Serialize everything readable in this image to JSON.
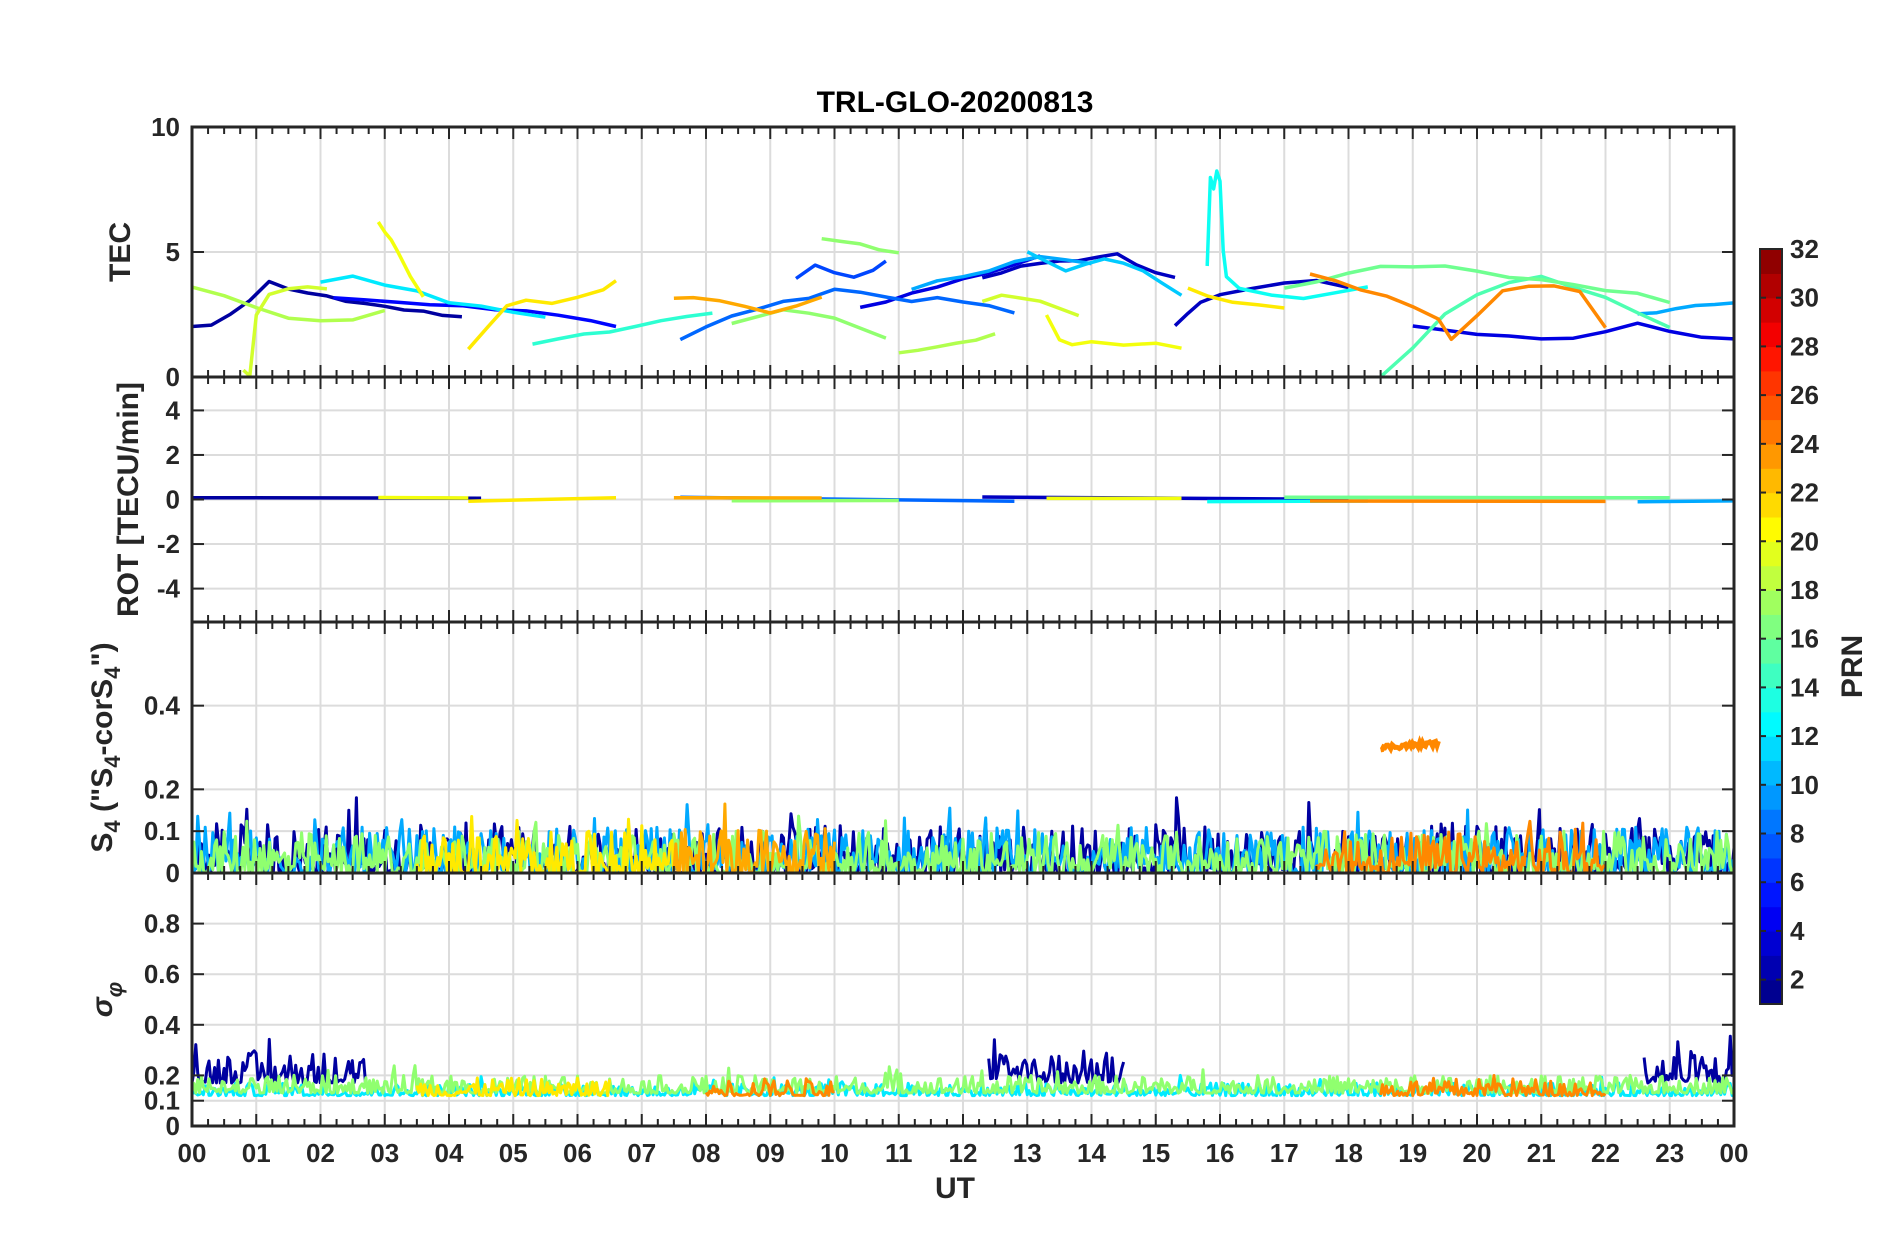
{
  "chart_data": {
    "type": "line",
    "title": "TRL-GLO-20200813",
    "xlabel": "UT",
    "x_ticks": [
      "00",
      "01",
      "02",
      "03",
      "04",
      "05",
      "06",
      "07",
      "08",
      "09",
      "10",
      "11",
      "12",
      "13",
      "14",
      "15",
      "16",
      "17",
      "18",
      "19",
      "20",
      "21",
      "22",
      "23",
      "00"
    ],
    "x_range": [
      0,
      24
    ],
    "panels": [
      {
        "name": "tec",
        "ylabel": "TEC",
        "ylim": [
          0,
          10
        ],
        "y_ticks": [
          0,
          5,
          10
        ],
        "tick_labels": [
          "0",
          "5",
          "10"
        ],
        "series": [
          {
            "prn": 2,
            "x": [
              0,
              0.3,
              0.6,
              0.9,
              1.2,
              1.5,
              1.8,
              2.1,
              2.4,
              2.7,
              3.0,
              3.3,
              3.6,
              3.9,
              4.2
            ],
            "y": [
              2.0,
              2.1,
              2.5,
              3.0,
              3.8,
              3.5,
              3.4,
              3.2,
              3.0,
              2.9,
              2.8,
              2.7,
              2.6,
              2.5,
              2.4
            ]
          },
          {
            "prn": 3,
            "x": [
              12.3,
              12.6,
              12.9,
              13.2,
              13.5,
              13.8,
              14.1,
              14.4,
              14.7,
              15.0,
              15.3
            ],
            "y": [
              4.0,
              4.2,
              4.4,
              4.5,
              4.6,
              4.7,
              4.8,
              4.9,
              4.5,
              4.2,
              4.0
            ]
          },
          {
            "prn": 3,
            "x": [
              15.3,
              15.5,
              15.7,
              16.0,
              16.5,
              17.0,
              17.5,
              18.0
            ],
            "y": [
              2.0,
              2.5,
              3.0,
              3.3,
              3.5,
              3.8,
              3.9,
              3.6
            ]
          },
          {
            "prn": 4,
            "x": [
              10.4,
              10.8,
              11.2,
              11.6,
              12.0,
              12.4,
              12.8,
              13.2
            ],
            "y": [
              2.8,
              3.0,
              3.3,
              3.6,
              3.9,
              4.2,
              4.5,
              4.8
            ]
          },
          {
            "prn": 4,
            "x": [
              19.0,
              19.5,
              20.0,
              20.5,
              21.0,
              21.5,
              22.0,
              22.5,
              23.0,
              23.5,
              24.0
            ],
            "y": [
              2.0,
              1.9,
              1.7,
              1.6,
              1.5,
              1.6,
              1.8,
              2.2,
              1.8,
              1.6,
              1.5
            ]
          },
          {
            "prn": 5,
            "x": [
              2.2,
              2.7,
              3.2,
              3.7,
              4.2,
              4.7,
              5.2,
              5.7,
              6.2,
              6.6
            ],
            "y": [
              3.2,
              3.1,
              3.0,
              2.9,
              2.8,
              2.7,
              2.7,
              2.5,
              2.3,
              2.0
            ]
          },
          {
            "prn": 7,
            "x": [
              9.4,
              9.7,
              10.0,
              10.3,
              10.6,
              10.8
            ],
            "y": [
              4.0,
              4.5,
              4.2,
              4.0,
              4.3,
              4.6
            ]
          },
          {
            "prn": 8,
            "x": [
              7.6,
              8.0,
              8.4,
              8.8,
              9.2,
              9.6,
              10.0,
              10.4,
              10.8,
              11.2,
              11.6,
              12.0,
              12.4,
              12.8
            ],
            "y": [
              1.5,
              2.0,
              2.4,
              2.7,
              3.0,
              3.2,
              3.5,
              3.4,
              3.2,
              3.0,
              3.2,
              3.0,
              2.8,
              2.6
            ]
          },
          {
            "prn": 10,
            "x": [
              11.2,
              11.6,
              12.0,
              12.4,
              12.8,
              13.2,
              13.6,
              14.0
            ],
            "y": [
              3.5,
              3.8,
              4.0,
              4.3,
              4.6,
              4.8,
              4.7,
              4.5
            ]
          },
          {
            "prn": 10,
            "x": [
              22.5,
              22.8,
              23.1,
              23.4,
              23.7,
              24.0
            ],
            "y": [
              2.5,
              2.6,
              2.7,
              2.8,
              2.9,
              3.0
            ]
          },
          {
            "prn": 11,
            "x": [
              13.0,
              13.3,
              13.6,
              13.9,
              14.2,
              14.5,
              14.8,
              15.1,
              15.4
            ],
            "y": [
              5.0,
              4.6,
              4.2,
              4.5,
              4.7,
              4.6,
              4.2,
              3.8,
              3.3
            ]
          },
          {
            "prn": 12,
            "x": [
              2.0,
              2.5,
              3.0,
              3.5,
              4.0,
              4.5,
              5.0,
              5.5
            ],
            "y": [
              3.8,
              4.0,
              3.7,
              3.4,
              3.0,
              2.8,
              2.6,
              2.4
            ]
          },
          {
            "prn": 13,
            "x": [
              15.8,
              15.85,
              15.9,
              15.95,
              16.0,
              16.05,
              16.1,
              16.3,
              16.8,
              17.3,
              17.8,
              18.3
            ],
            "y": [
              4.5,
              8.0,
              7.5,
              8.2,
              7.8,
              5.0,
              4.0,
              3.5,
              3.3,
              3.2,
              3.4,
              3.6
            ]
          },
          {
            "prn": 14,
            "x": [
              5.3,
              5.7,
              6.1,
              6.5,
              6.9,
              7.3,
              7.7,
              8.1
            ],
            "y": [
              1.3,
              1.5,
              1.7,
              1.8,
              2.0,
              2.2,
              2.4,
              2.6
            ]
          },
          {
            "prn": 15,
            "x": [
              18.5,
              19.0,
              19.5,
              20.0,
              20.5,
              21.0,
              21.5,
              22.0,
              22.5,
              23.0
            ],
            "y": [
              0.0,
              1.2,
              2.5,
              3.3,
              3.8,
              4.0,
              3.6,
              3.2,
              2.6,
              2.0
            ]
          },
          {
            "prn": 16,
            "x": [
              17.0,
              17.5,
              18.0,
              18.5,
              19.0,
              19.5,
              20.0,
              20.5,
              21.0,
              21.5,
              22.0,
              22.5,
              23.0
            ],
            "y": [
              3.6,
              3.8,
              4.1,
              4.4,
              4.4,
              4.4,
              4.2,
              4.0,
              3.9,
              3.7,
              3.5,
              3.3,
              3.0
            ]
          },
          {
            "prn": 17,
            "x": [
              8.4,
              8.8,
              9.2,
              9.6,
              10.0,
              10.4,
              10.8
            ],
            "y": [
              2.2,
              2.4,
              2.7,
              2.6,
              2.4,
              2.0,
              1.6
            ]
          },
          {
            "prn": 17,
            "x": [
              9.8,
              10.1,
              10.4,
              10.7,
              11.0
            ],
            "y": [
              5.5,
              5.4,
              5.3,
              5.1,
              5.0
            ]
          },
          {
            "prn": 18,
            "x": [
              0,
              0.5,
              1.0,
              1.5,
              2.0,
              2.5,
              3.0
            ],
            "y": [
              3.6,
              3.2,
              2.8,
              2.4,
              2.2,
              2.3,
              2.6
            ]
          },
          {
            "prn": 18,
            "x": [
              11.0,
              11.3,
              11.6,
              11.9,
              12.2,
              12.5
            ],
            "y": [
              1.0,
              1.1,
              1.2,
              1.3,
              1.5,
              1.7
            ]
          },
          {
            "prn": 19,
            "x": [
              0.8,
              0.9,
              1.0,
              1.2,
              1.5,
              1.8,
              2.1
            ],
            "y": [
              0.3,
              0.0,
              2.5,
              3.3,
              3.5,
              3.6,
              3.5
            ]
          },
          {
            "prn": 19,
            "x": [
              12.3,
              12.6,
              12.9,
              13.2,
              13.5,
              13.8
            ],
            "y": [
              3.0,
              3.3,
              3.2,
              3.0,
              2.8,
              2.5
            ]
          },
          {
            "prn": 20,
            "x": [
              2.9,
              3.0,
              3.1,
              3.2,
              3.4,
              3.6
            ],
            "y": [
              6.2,
              5.8,
              5.5,
              5.0,
              4.0,
              3.2
            ]
          },
          {
            "prn": 20,
            "x": [
              13.3,
              13.5,
              13.7,
              14.0,
              14.5,
              15.0,
              15.4
            ],
            "y": [
              2.5,
              1.5,
              1.3,
              1.4,
              1.3,
              1.3,
              1.1
            ]
          },
          {
            "prn": 21,
            "x": [
              4.3,
              4.6,
              4.9,
              5.2,
              5.6,
              6.0,
              6.4,
              6.6
            ],
            "y": [
              1.1,
              2.0,
              2.8,
              3.1,
              3.0,
              3.2,
              3.5,
              3.8
            ]
          },
          {
            "prn": 21,
            "x": [
              15.5,
              15.8,
              16.2,
              16.6,
              17.0
            ],
            "y": [
              3.5,
              3.3,
              3.0,
              2.9,
              2.8
            ]
          },
          {
            "prn": 23,
            "x": [
              7.5,
              7.8,
              8.2,
              8.6,
              9.0,
              9.4,
              9.8
            ],
            "y": [
              3.1,
              3.2,
              3.0,
              2.8,
              2.5,
              2.8,
              3.2
            ]
          },
          {
            "prn": 24,
            "x": [
              17.4,
              17.8,
              18.2,
              18.6,
              19.0,
              19.4,
              19.6,
              20.0,
              20.4,
              20.8,
              21.2,
              21.6,
              22.0
            ],
            "y": [
              4.1,
              3.8,
              3.5,
              3.2,
              2.8,
              2.3,
              1.5,
              2.5,
              3.4,
              3.6,
              3.7,
              3.4,
              2.0
            ]
          }
        ]
      },
      {
        "name": "rot",
        "ylabel": "ROT [TECU/min]",
        "ylim": [
          -5.5,
          5.5
        ],
        "y_ticks": [
          -4,
          -2,
          0,
          2,
          4
        ],
        "tick_labels": [
          "-4",
          "-2",
          "0",
          "2",
          "4"
        ],
        "series": [
          {
            "prn": 2,
            "x": [
              0,
              4.5
            ],
            "y": [
              0,
              0
            ]
          },
          {
            "prn": 3,
            "x": [
              12.3,
              18.0
            ],
            "y": [
              0,
              0
            ]
          },
          {
            "prn": 8,
            "x": [
              7.6,
              12.8
            ],
            "y": [
              0,
              0
            ]
          },
          {
            "prn": 13,
            "x": [
              15.8,
              18.3
            ],
            "y": [
              0,
              0
            ]
          },
          {
            "prn": 16,
            "x": [
              17.0,
              23.0
            ],
            "y": [
              0,
              0
            ]
          },
          {
            "prn": 17,
            "x": [
              8.4,
              11.0
            ],
            "y": [
              0,
              0
            ]
          },
          {
            "prn": 20,
            "x": [
              2.9,
              4.3
            ],
            "y": [
              0,
              0
            ]
          },
          {
            "prn": 20,
            "x": [
              13.3,
              15.4
            ],
            "y": [
              0,
              0
            ]
          },
          {
            "prn": 21,
            "x": [
              4.3,
              6.6
            ],
            "y": [
              0,
              0
            ]
          },
          {
            "prn": 23,
            "x": [
              7.5,
              9.8
            ],
            "y": [
              0,
              0
            ]
          },
          {
            "prn": 24,
            "x": [
              17.4,
              22.0
            ],
            "y": [
              0,
              0
            ]
          },
          {
            "prn": 10,
            "x": [
              22.5,
              24.0
            ],
            "y": [
              0,
              0
            ]
          }
        ]
      },
      {
        "name": "s4",
        "ylabel": "S4 (\"S4-corS4\")",
        "ylabel_base": "S",
        "ylabel_sub": "4",
        "ylabel_mid": " (\"S",
        "ylabel_sub2": "4",
        "ylabel_mid2": "-corS",
        "ylabel_sub3": "4",
        "ylabel_end": "\")",
        "ylim": [
          0,
          0.6
        ],
        "y_ticks": [
          0,
          0.1,
          0.2,
          0.4
        ],
        "tick_labels": [
          "0",
          "0.1",
          "0.2",
          "0.4"
        ],
        "special_series": {
          "prn": 24,
          "x": [
            18.5,
            19.4
          ],
          "y": [
            0.3,
            0.31
          ]
        },
        "noise_bands": [
          {
            "prn": 2,
            "start": 0,
            "end": 24,
            "max": 0.12
          },
          {
            "prn": 10,
            "start": 0,
            "end": 24,
            "max": 0.11
          },
          {
            "prn": 17,
            "start": 0,
            "end": 24,
            "max": 0.1
          },
          {
            "prn": 21,
            "start": 3.5,
            "end": 7.5,
            "max": 0.1
          },
          {
            "prn": 23,
            "start": 7.5,
            "end": 10.0,
            "max": 0.11
          },
          {
            "prn": 24,
            "start": 17.5,
            "end": 22.0,
            "max": 0.1
          }
        ]
      },
      {
        "name": "sigma",
        "ylabel": "σφ",
        "ylabel_base": "σ",
        "ylabel_sub": "φ",
        "ylim": [
          0,
          1
        ],
        "y_ticks": [
          0,
          0.1,
          0.2,
          0.4,
          0.6,
          0.8
        ],
        "tick_labels": [
          "0",
          "0.1",
          "0.2",
          "0.4",
          "0.6",
          "0.8"
        ],
        "noise_bands": [
          {
            "prn": 2,
            "start": 0,
            "end": 2.7,
            "min": 0.17,
            "max": 0.3
          },
          {
            "prn": 2,
            "start": 12.4,
            "end": 14.5,
            "min": 0.17,
            "max": 0.3
          },
          {
            "prn": 2,
            "start": 22.6,
            "end": 24,
            "min": 0.17,
            "max": 0.3
          },
          {
            "prn": 12,
            "start": 0,
            "end": 24,
            "min": 0.12,
            "max": 0.17
          },
          {
            "prn": 17,
            "start": 0,
            "end": 24,
            "min": 0.13,
            "max": 0.2
          },
          {
            "prn": 21,
            "start": 3.5,
            "end": 6.5,
            "min": 0.12,
            "max": 0.19
          },
          {
            "prn": 24,
            "start": 8.0,
            "end": 10.0,
            "min": 0.12,
            "max": 0.19
          },
          {
            "prn": 24,
            "start": 18.5,
            "end": 22.0,
            "min": 0.12,
            "max": 0.19
          }
        ]
      }
    ],
    "colorbar": {
      "label": "PRN",
      "range": [
        1,
        32
      ],
      "ticks": [
        2,
        4,
        6,
        8,
        10,
        12,
        14,
        16,
        18,
        20,
        22,
        24,
        26,
        28,
        30,
        32
      ],
      "tick_labels": [
        "2",
        "4",
        "6",
        "8",
        "10",
        "12",
        "14",
        "16",
        "18",
        "20",
        "22",
        "24",
        "26",
        "28",
        "30",
        "32"
      ],
      "colormap": "jet"
    }
  }
}
